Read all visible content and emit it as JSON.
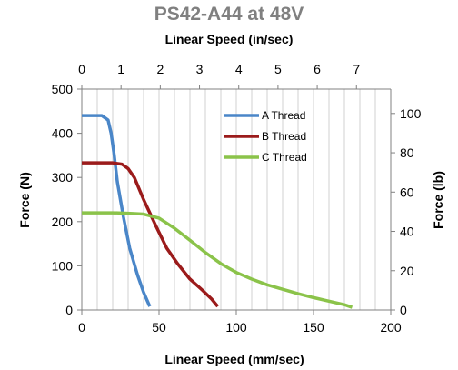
{
  "chart_data": {
    "type": "line",
    "title": "PS42-A44 at 48V",
    "xlabel": "Linear Speed (mm/sec)",
    "xlabel_top": "Linear Speed (in/sec)",
    "ylabel_left": "Force (N)",
    "ylabel_right": "Force (lb)",
    "xlim": [
      0,
      200
    ],
    "xlim_top": [
      0,
      7.874
    ],
    "ylim_left": [
      0,
      500
    ],
    "ylim_right": [
      0,
      112.4
    ],
    "x_ticks": [
      "0",
      "50",
      "100",
      "150",
      "200"
    ],
    "x_ticks_top": [
      "0",
      "1",
      "2",
      "3",
      "4",
      "5",
      "6",
      "7"
    ],
    "y_ticks_left": [
      "0",
      "100",
      "200",
      "300",
      "400",
      "500"
    ],
    "y_ticks_right": [
      "0",
      "20",
      "40",
      "60",
      "80",
      "100"
    ],
    "grid": "vertical",
    "legend_position": "top-right",
    "series": [
      {
        "name": "A Thread",
        "color": "#4a86c8",
        "x": [
          0,
          7,
          13,
          17,
          19,
          21,
          23,
          27,
          31,
          36,
          40,
          44
        ],
        "y": [
          440,
          440,
          440,
          430,
          400,
          350,
          290,
          210,
          140,
          80,
          40,
          8
        ]
      },
      {
        "name": "B Thread",
        "color": "#9b1b1b",
        "x": [
          0,
          10,
          20,
          26,
          30,
          34,
          40,
          48,
          55,
          62,
          70,
          78,
          84,
          88
        ],
        "y": [
          333,
          333,
          333,
          330,
          320,
          300,
          250,
          190,
          140,
          105,
          70,
          45,
          25,
          8
        ]
      },
      {
        "name": "C Thread",
        "color": "#8bc34a",
        "x": [
          0,
          10,
          20,
          30,
          40,
          50,
          60,
          70,
          80,
          90,
          100,
          110,
          120,
          130,
          140,
          150,
          160,
          170,
          175
        ],
        "y": [
          220,
          220,
          220,
          219,
          217,
          208,
          185,
          158,
          130,
          105,
          85,
          70,
          57,
          47,
          37,
          28,
          20,
          12,
          6
        ]
      }
    ]
  }
}
